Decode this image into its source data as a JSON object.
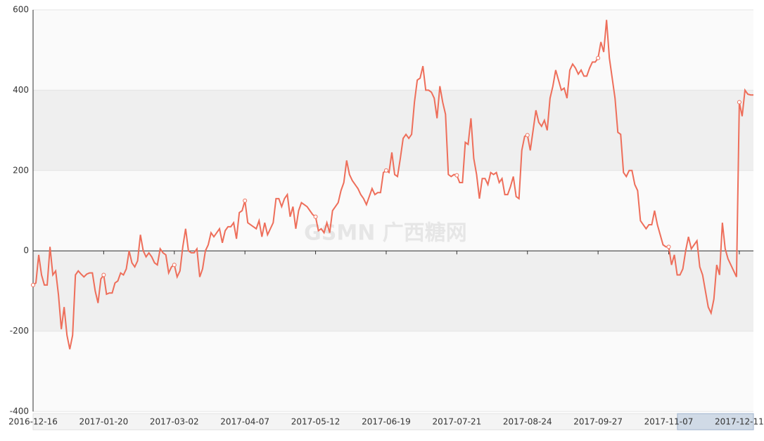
{
  "chart_data": {
    "type": "line",
    "watermark": "GSMN 广西糖网",
    "categories": [
      "2016-12-16",
      null,
      null,
      null,
      null,
      null,
      null,
      null,
      null,
      null,
      null,
      null,
      null,
      null,
      null,
      null,
      null,
      null,
      null,
      null,
      null,
      null,
      null,
      null,
      null,
      "2017-01-20",
      null,
      null,
      null,
      null,
      null,
      null,
      null,
      null,
      null,
      null,
      null,
      null,
      null,
      null,
      null,
      null,
      null,
      null,
      null,
      null,
      null,
      null,
      null,
      null,
      "2017-03-02",
      null,
      null,
      null,
      null,
      null,
      null,
      null,
      null,
      null,
      null,
      null,
      null,
      null,
      null,
      null,
      null,
      null,
      null,
      null,
      null,
      null,
      null,
      null,
      null,
      "2017-04-07",
      null,
      null,
      null,
      null,
      null,
      null,
      null,
      null,
      null,
      null,
      null,
      null,
      null,
      null,
      null,
      null,
      null,
      null,
      null,
      null,
      null,
      null,
      null,
      null,
      "2017-05-12",
      null,
      null,
      null,
      null,
      null,
      null,
      null,
      null,
      null,
      null,
      null,
      null,
      null,
      null,
      null,
      null,
      null,
      null,
      null,
      null,
      null,
      null,
      null,
      null,
      "2017-06-19",
      null,
      null,
      null,
      null,
      null,
      null,
      null,
      null,
      null,
      null,
      null,
      null,
      null,
      null,
      null,
      null,
      null,
      null,
      null,
      null,
      null,
      null,
      null,
      null,
      "2017-07-21",
      null,
      null,
      null,
      null,
      null,
      null,
      null,
      null,
      null,
      null,
      null,
      null,
      null,
      null,
      null,
      null,
      null,
      null,
      null,
      null,
      null,
      null,
      null,
      null,
      "2017-08-24",
      null,
      null,
      null,
      null,
      null,
      null,
      null,
      null,
      null,
      null,
      null,
      null,
      null,
      null,
      null,
      null,
      null,
      null,
      null,
      null,
      null,
      null,
      null,
      null,
      "2017-09-27",
      null,
      null,
      null,
      null,
      null,
      null,
      null,
      null,
      null,
      null,
      null,
      null,
      null,
      null,
      null,
      null,
      null,
      null,
      null,
      null,
      null,
      null,
      null,
      null,
      "2017-11-07",
      null,
      null,
      null,
      null,
      null,
      null,
      null,
      null,
      null,
      null,
      null,
      null,
      null,
      null,
      null,
      null,
      null,
      null,
      null,
      null,
      null,
      null,
      null,
      null,
      "2017-12-11",
      null,
      null,
      null,
      null,
      null
    ],
    "color": "#ee6e5a",
    "values": [
      -85,
      -80,
      -10,
      -60,
      -85,
      -85,
      10,
      -60,
      -50,
      -110,
      -195,
      -140,
      -210,
      -245,
      -210,
      -60,
      -50,
      -58,
      -65,
      -58,
      -55,
      -55,
      -100,
      -130,
      -70,
      -60,
      -108,
      -105,
      -105,
      -80,
      -75,
      -55,
      -60,
      -45,
      0,
      -30,
      -40,
      -25,
      40,
      0,
      -15,
      -5,
      -15,
      -30,
      -35,
      5,
      -5,
      -10,
      -55,
      -40,
      -35,
      -65,
      -50,
      10,
      55,
      0,
      -5,
      -5,
      5,
      -65,
      -45,
      0,
      15,
      45,
      35,
      45,
      55,
      20,
      50,
      60,
      60,
      70,
      30,
      95,
      100,
      125,
      70,
      65,
      60,
      55,
      75,
      35,
      70,
      40,
      55,
      70,
      130,
      130,
      110,
      130,
      140,
      85,
      110,
      55,
      100,
      120,
      115,
      110,
      100,
      90,
      85,
      50,
      55,
      45,
      70,
      45,
      100,
      110,
      120,
      150,
      170,
      225,
      190,
      175,
      165,
      155,
      140,
      130,
      115,
      135,
      155,
      140,
      145,
      145,
      195,
      200,
      195,
      245,
      190,
      185,
      230,
      280,
      290,
      280,
      290,
      370,
      425,
      430,
      460,
      400,
      400,
      395,
      380,
      330,
      410,
      370,
      340,
      190,
      185,
      190,
      188,
      170,
      170,
      270,
      265,
      330,
      230,
      190,
      130,
      180,
      180,
      165,
      195,
      190,
      195,
      170,
      180,
      140,
      140,
      160,
      185,
      135,
      130,
      250,
      285,
      288,
      250,
      300,
      350,
      320,
      310,
      325,
      300,
      380,
      410,
      450,
      425,
      400,
      405,
      380,
      450,
      465,
      455,
      440,
      450,
      435,
      435,
      455,
      470,
      470,
      480,
      520,
      495,
      575,
      480,
      430,
      380,
      295,
      290,
      195,
      185,
      200,
      200,
      165,
      150,
      75,
      65,
      55,
      65,
      65,
      100,
      65,
      40,
      15,
      10,
      10,
      -35,
      -10,
      -60,
      -60,
      -45,
      0,
      35,
      5,
      15,
      25,
      -40,
      -60,
      -100,
      -140,
      -155,
      -120,
      -35,
      -60,
      70,
      5,
      -20,
      -35,
      -50,
      -65,
      370,
      335,
      400,
      390,
      388,
      388
    ],
    "ylim": [
      -400,
      600
    ],
    "yticks": [
      -400,
      -200,
      0,
      200,
      400,
      600
    ],
    "split_area": true,
    "grid": true
  }
}
